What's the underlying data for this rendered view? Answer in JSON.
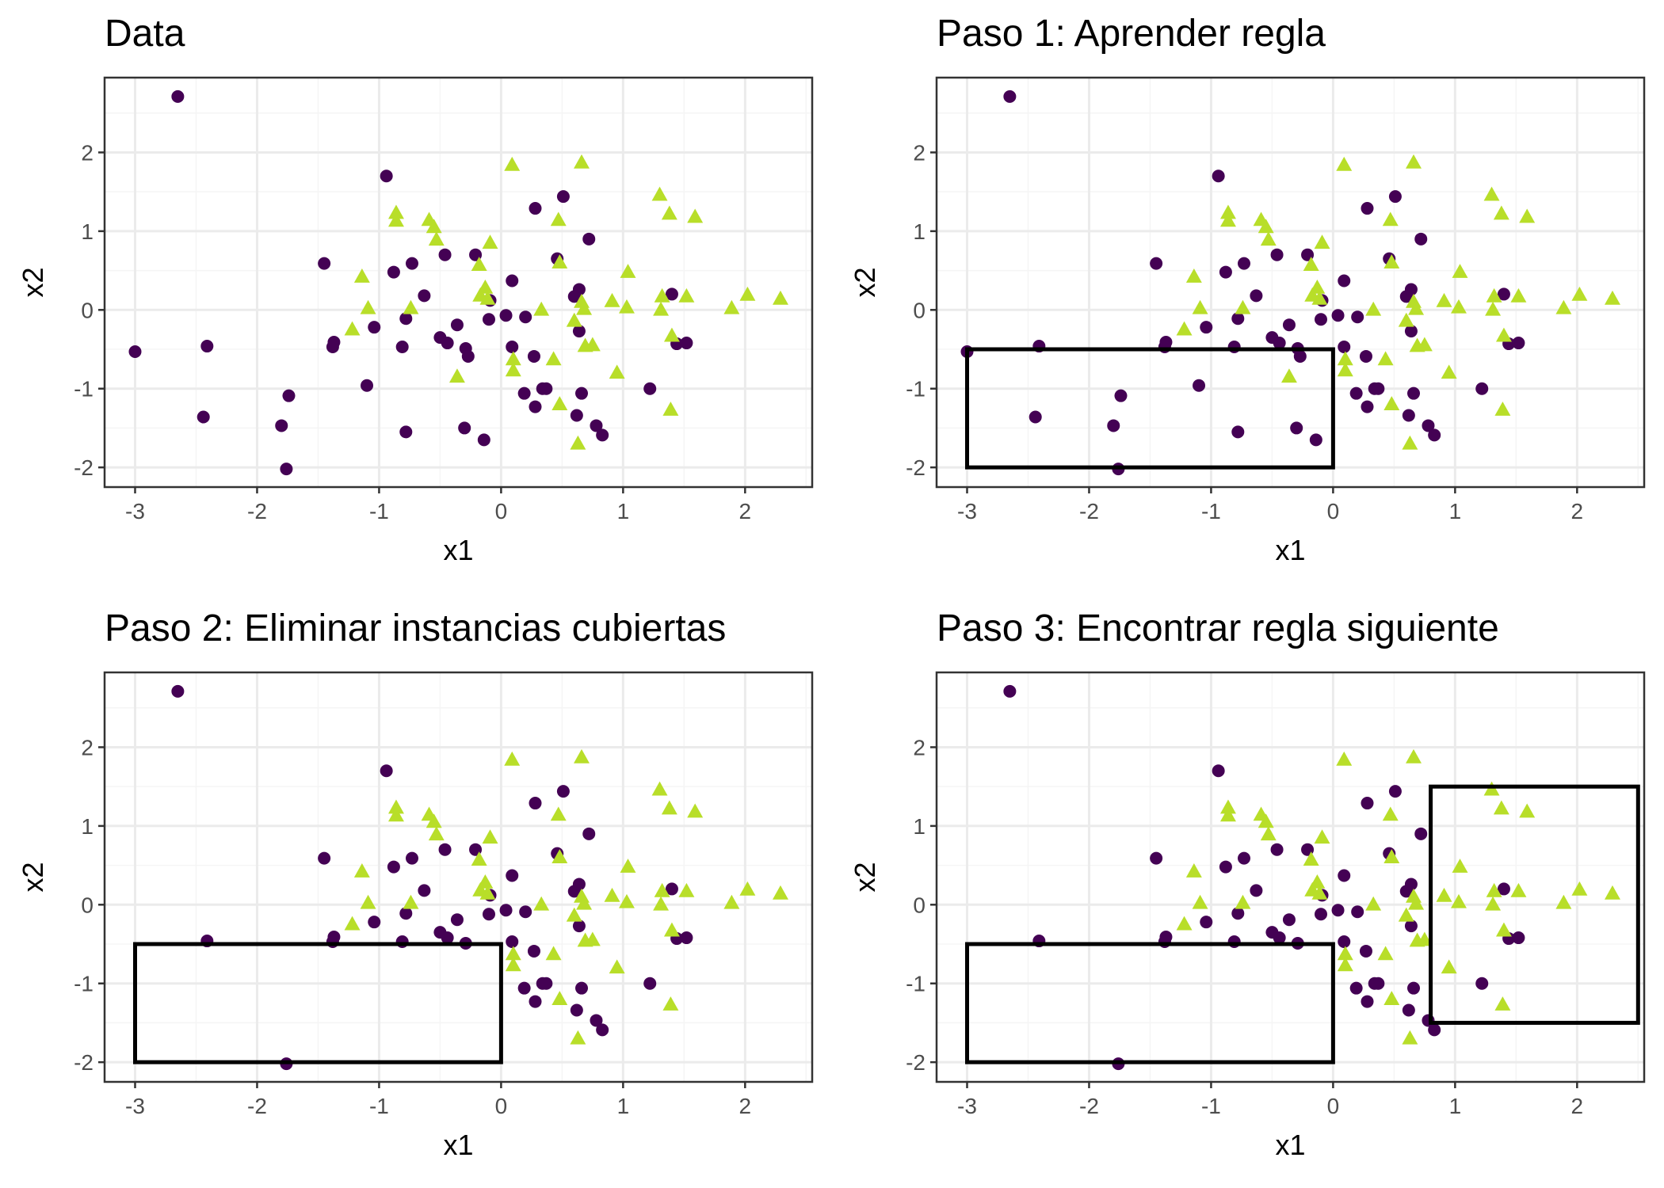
{
  "colors": {
    "class_a": "#440154",
    "class_b": "#B8DE29",
    "grid_major": "#EBEBEB",
    "grid_minor": "#F5F5F5",
    "panel_border": "#333333",
    "rule_box": "#000000"
  },
  "chart_data": [
    {
      "type": "scatter",
      "title": "Data",
      "xlabel": "x1",
      "ylabel": "x2",
      "xlim": [
        -3.25,
        2.55
      ],
      "ylim": [
        -2.25,
        2.95
      ],
      "xticks": [
        -3,
        -2,
        -1,
        0,
        1,
        2
      ],
      "yticks": [
        -2,
        -1,
        0,
        1,
        2
      ],
      "grid": true,
      "series_ref": "all_points",
      "boxes": []
    },
    {
      "type": "scatter",
      "title": "Paso 1: Aprender regla",
      "xlabel": "x1",
      "ylabel": "x2",
      "xlim": [
        -3.25,
        2.55
      ],
      "ylim": [
        -2.25,
        2.95
      ],
      "xticks": [
        -3,
        -2,
        -1,
        0,
        1,
        2
      ],
      "yticks": [
        -2,
        -1,
        0,
        1,
        2
      ],
      "grid": true,
      "series_ref": "all_points",
      "boxes": [
        {
          "x": [
            -3,
            0
          ],
          "y": [
            -2,
            -0.5
          ]
        }
      ]
    },
    {
      "type": "scatter",
      "title": "Paso 2: Eliminar instancias cubiertas",
      "xlabel": "x1",
      "ylabel": "x2",
      "xlim": [
        -3.25,
        2.55
      ],
      "ylim": [
        -2.25,
        2.95
      ],
      "xticks": [
        -3,
        -2,
        -1,
        0,
        1,
        2
      ],
      "yticks": [
        -2,
        -1,
        0,
        1,
        2
      ],
      "grid": true,
      "series_ref": "all_points",
      "hide_covered": {
        "x": [
          -3,
          0
        ],
        "y": [
          -2,
          -0.5
        ]
      },
      "boxes": [
        {
          "x": [
            -3,
            0
          ],
          "y": [
            -2,
            -0.5
          ]
        }
      ]
    },
    {
      "type": "scatter",
      "title": "Paso 3: Encontrar regla siguiente",
      "xlabel": "x1",
      "ylabel": "x2",
      "xlim": [
        -3.25,
        2.55
      ],
      "ylim": [
        -2.25,
        2.95
      ],
      "xticks": [
        -3,
        -2,
        -1,
        0,
        1,
        2
      ],
      "yticks": [
        -2,
        -1,
        0,
        1,
        2
      ],
      "grid": true,
      "series_ref": "all_points",
      "hide_covered": {
        "x": [
          -3,
          0
        ],
        "y": [
          -2,
          -0.5
        ]
      },
      "boxes": [
        {
          "x": [
            -3,
            0
          ],
          "y": [
            -2,
            -0.5
          ]
        },
        {
          "x": [
            0.8,
            2.5
          ],
          "y": [
            -1.5,
            1.5
          ]
        }
      ]
    }
  ],
  "all_points": {
    "class_a": [
      [
        -2.65,
        2.71
      ],
      [
        -3.0,
        -0.53
      ],
      [
        -2.41,
        -0.46
      ],
      [
        -2.44,
        -1.36
      ],
      [
        -1.74,
        -1.09
      ],
      [
        -1.8,
        -1.47
      ],
      [
        -1.76,
        -2.02
      ],
      [
        -1.45,
        0.59
      ],
      [
        -1.37,
        -0.41
      ],
      [
        -1.38,
        -0.47
      ],
      [
        -1.1,
        -0.96
      ],
      [
        -1.04,
        -0.22
      ],
      [
        -0.94,
        1.7
      ],
      [
        -0.88,
        0.48
      ],
      [
        -0.73,
        0.59
      ],
      [
        -0.78,
        -0.11
      ],
      [
        -0.81,
        -0.47
      ],
      [
        -0.78,
        -1.55
      ],
      [
        -0.63,
        0.18
      ],
      [
        -0.46,
        0.7
      ],
      [
        -0.5,
        -0.35
      ],
      [
        -0.44,
        -0.42
      ],
      [
        -0.36,
        -0.19
      ],
      [
        -0.29,
        -0.49
      ],
      [
        -0.27,
        -0.59
      ],
      [
        -0.3,
        -1.5
      ],
      [
        -0.14,
        -1.65
      ],
      [
        -0.21,
        0.7
      ],
      [
        -0.1,
        -0.12
      ],
      [
        -0.09,
        0.12
      ],
      [
        0.04,
        -0.07
      ],
      [
        0.09,
        0.37
      ],
      [
        0.09,
        -0.47
      ],
      [
        0.2,
        -0.09
      ],
      [
        0.28,
        1.29
      ],
      [
        0.27,
        -0.59
      ],
      [
        0.19,
        -1.06
      ],
      [
        0.28,
        -1.23
      ],
      [
        0.34,
        -1.0
      ],
      [
        0.37,
        -1.0
      ],
      [
        0.46,
        0.65
      ],
      [
        0.51,
        1.44
      ],
      [
        0.6,
        0.17
      ],
      [
        0.64,
        0.26
      ],
      [
        0.64,
        -0.27
      ],
      [
        0.66,
        -1.06
      ],
      [
        0.62,
        -1.34
      ],
      [
        0.72,
        0.9
      ],
      [
        0.78,
        -1.47
      ],
      [
        0.83,
        -1.59
      ],
      [
        1.22,
        -1.0
      ],
      [
        1.4,
        0.2
      ],
      [
        1.44,
        -0.43
      ],
      [
        1.52,
        -0.42
      ]
    ],
    "class_b": [
      [
        -1.14,
        0.42
      ],
      [
        -1.22,
        -0.25
      ],
      [
        -1.09,
        0.02
      ],
      [
        -0.86,
        1.23
      ],
      [
        -0.86,
        1.13
      ],
      [
        -0.74,
        0.02
      ],
      [
        -0.59,
        1.14
      ],
      [
        -0.55,
        1.05
      ],
      [
        -0.53,
        0.89
      ],
      [
        -0.36,
        -0.85
      ],
      [
        -0.18,
        0.57
      ],
      [
        -0.17,
        0.18
      ],
      [
        -0.13,
        0.28
      ],
      [
        -0.09,
        0.85
      ],
      [
        -0.11,
        0.14
      ],
      [
        0.09,
        1.84
      ],
      [
        0.1,
        -0.77
      ],
      [
        0.1,
        -0.63
      ],
      [
        0.33,
        0.0
      ],
      [
        0.43,
        -0.63
      ],
      [
        0.47,
        1.14
      ],
      [
        0.48,
        0.6
      ],
      [
        0.48,
        -1.2
      ],
      [
        0.6,
        -0.14
      ],
      [
        0.63,
        -1.7
      ],
      [
        0.66,
        1.87
      ],
      [
        0.66,
        0.1
      ],
      [
        0.68,
        0.01
      ],
      [
        0.69,
        -0.46
      ],
      [
        0.75,
        -0.45
      ],
      [
        0.91,
        0.11
      ],
      [
        0.95,
        -0.8
      ],
      [
        1.04,
        0.48
      ],
      [
        1.03,
        0.03
      ],
      [
        1.3,
        1.46
      ],
      [
        1.31,
        0.0
      ],
      [
        1.32,
        0.17
      ],
      [
        1.38,
        1.22
      ],
      [
        1.4,
        -0.33
      ],
      [
        1.39,
        -1.27
      ],
      [
        1.52,
        0.17
      ],
      [
        1.59,
        1.18
      ],
      [
        1.89,
        0.02
      ],
      [
        2.02,
        0.19
      ],
      [
        2.29,
        0.14
      ]
    ]
  }
}
